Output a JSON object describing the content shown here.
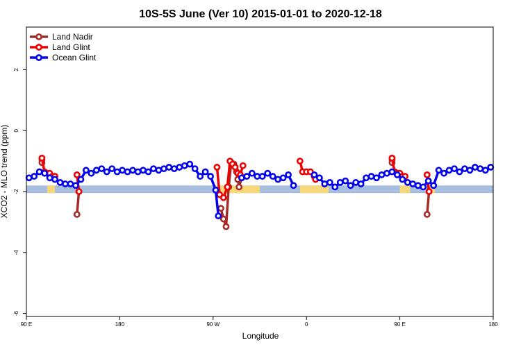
{
  "chart_data": {
    "type": "line",
    "title": "10S-5S June (Ver 10)   2015-01-01 to 2020-12-18",
    "xlabel": "Longitude",
    "ylabel": "XCO2 - MLO trend (ppm)",
    "xlim": [
      90,
      450
    ],
    "ylim": [
      -6.1,
      3.4
    ],
    "x_ticks": [
      {
        "value": 90,
        "label": "90 E"
      },
      {
        "value": 162,
        "label": "180"
      },
      {
        "value": 234,
        "label": "90 W"
      },
      {
        "value": 306,
        "label": "0"
      },
      {
        "value": 378,
        "label": "90 E"
      },
      {
        "value": 450,
        "label": "180"
      }
    ],
    "y_ticks": [
      {
        "value": 2,
        "label": "2"
      },
      {
        "value": 0,
        "label": "0"
      },
      {
        "value": -2,
        "label": "-2"
      },
      {
        "value": -4,
        "label": "-4"
      },
      {
        "value": -6,
        "label": "-6"
      }
    ],
    "grid": false,
    "legend_position": "top-left",
    "land_band": {
      "y_range": [
        -2.05,
        -1.8
      ],
      "ocean_color": "#a7bedf",
      "land_color": "#f6d87a",
      "land_segments": [
        [
          106,
          112
        ],
        [
          236,
          270
        ],
        [
          301,
          323
        ],
        [
          378,
          386
        ],
        [
          401,
          405
        ]
      ]
    },
    "series": [
      {
        "name": "Land Nadir",
        "color": "#a52a2a",
        "segments": [
          [
            [
              102,
              -0.95
            ],
            [
              102,
              -1.05
            ]
          ],
          [
            [
              129,
              -2.75
            ],
            [
              130.5,
              -2.0
            ]
          ],
          [
            [
              240,
              -2.55
            ],
            [
              242,
              -2.9
            ],
            [
              244,
              -3.15
            ],
            [
              246,
              -1.85
            ],
            [
              248,
              -1.05
            ],
            [
              250,
              -1.1
            ],
            [
              252,
              -1.35
            ],
            [
              253,
              -1.6
            ],
            [
              254,
              -1.85
            ],
            [
              256,
              -1.55
            ]
          ],
          [
            [
              372,
              -0.95
            ],
            [
              372,
              -1.05
            ]
          ],
          [
            [
              399,
              -2.75
            ],
            [
              400.5,
              -2.0
            ]
          ]
        ]
      },
      {
        "name": "Land Glint",
        "color": "#ee0000",
        "segments": [
          [
            [
              102,
              -0.9
            ],
            [
              104,
              -1.35
            ],
            [
              106,
              -1.4
            ],
            [
              108,
              -1.4
            ],
            [
              110,
              -1.5
            ],
            [
              112,
              -1.5
            ]
          ],
          [
            [
              129,
              -1.45
            ],
            [
              130.5,
              -2.0
            ]
          ],
          [
            [
              237,
              -1.2
            ],
            [
              239,
              -2.1
            ],
            [
              242,
              -2.2
            ],
            [
              245,
              -1.85
            ],
            [
              247,
              -1.0
            ],
            [
              249,
              -1.1
            ],
            [
              251,
              -1.2
            ],
            [
              253,
              -1.4
            ],
            [
              255,
              -1.45
            ],
            [
              257,
              -1.15
            ]
          ],
          [
            [
              301,
              -1.0
            ],
            [
              303,
              -1.35
            ],
            [
              306,
              -1.35
            ],
            [
              309,
              -1.35
            ],
            [
              312,
              -1.5
            ],
            [
              313,
              -1.6
            ]
          ],
          [
            [
              372,
              -0.9
            ],
            [
              374,
              -1.35
            ],
            [
              376,
              -1.4
            ],
            [
              378,
              -1.4
            ],
            [
              380,
              -1.5
            ],
            [
              382,
              -1.5
            ]
          ],
          [
            [
              399,
              -1.45
            ],
            [
              400.5,
              -2.0
            ]
          ]
        ]
      },
      {
        "name": "Ocean Glint",
        "color": "#0000ee",
        "segments": [
          [
            [
              92,
              -1.55
            ],
            [
              96,
              -1.5
            ],
            [
              100,
              -1.35
            ],
            [
              104,
              -1.4
            ],
            [
              108,
              -1.55
            ],
            [
              112,
              -1.6
            ],
            [
              116,
              -1.7
            ],
            [
              120,
              -1.75
            ],
            [
              124,
              -1.75
            ],
            [
              128,
              -1.8
            ],
            [
              132,
              -1.6
            ],
            [
              136,
              -1.3
            ],
            [
              140,
              -1.4
            ],
            [
              144,
              -1.3
            ],
            [
              148,
              -1.25
            ],
            [
              152,
              -1.35
            ],
            [
              156,
              -1.25
            ],
            [
              160,
              -1.35
            ],
            [
              164,
              -1.3
            ],
            [
              168,
              -1.35
            ],
            [
              172,
              -1.3
            ],
            [
              176,
              -1.35
            ],
            [
              180,
              -1.3
            ],
            [
              184,
              -1.35
            ],
            [
              188,
              -1.25
            ],
            [
              192,
              -1.3
            ],
            [
              196,
              -1.25
            ],
            [
              200,
              -1.2
            ],
            [
              204,
              -1.25
            ],
            [
              208,
              -1.2
            ],
            [
              212,
              -1.15
            ],
            [
              216,
              -1.1
            ],
            [
              220,
              -1.25
            ],
            [
              224,
              -1.5
            ],
            [
              228,
              -1.35
            ],
            [
              232,
              -1.5
            ],
            [
              236,
              -1.95
            ],
            [
              238,
              -2.8
            ]
          ],
          [
            [
              256,
              -1.55
            ],
            [
              260,
              -1.5
            ],
            [
              264,
              -1.4
            ],
            [
              268,
              -1.5
            ],
            [
              272,
              -1.5
            ],
            [
              276,
              -1.4
            ],
            [
              280,
              -1.5
            ],
            [
              284,
              -1.6
            ],
            [
              288,
              -1.55
            ],
            [
              292,
              -1.45
            ],
            [
              296,
              -1.8
            ]
          ],
          [
            [
              312,
              -1.45
            ],
            [
              316,
              -1.55
            ],
            [
              320,
              -1.75
            ],
            [
              324,
              -1.7
            ],
            [
              328,
              -1.85
            ],
            [
              332,
              -1.7
            ],
            [
              336,
              -1.65
            ],
            [
              340,
              -1.8
            ],
            [
              344,
              -1.7
            ],
            [
              348,
              -1.75
            ],
            [
              352,
              -1.55
            ],
            [
              356,
              -1.5
            ],
            [
              360,
              -1.55
            ],
            [
              364,
              -1.45
            ],
            [
              368,
              -1.4
            ],
            [
              372,
              -1.35
            ],
            [
              376,
              -1.45
            ],
            [
              380,
              -1.6
            ],
            [
              384,
              -1.7
            ],
            [
              388,
              -1.75
            ],
            [
              392,
              -1.8
            ],
            [
              396,
              -1.85
            ],
            [
              400,
              -1.65
            ],
            [
              404,
              -1.8
            ],
            [
              408,
              -1.3
            ],
            [
              412,
              -1.4
            ],
            [
              416,
              -1.3
            ],
            [
              420,
              -1.25
            ],
            [
              424,
              -1.35
            ],
            [
              428,
              -1.25
            ],
            [
              432,
              -1.3
            ],
            [
              436,
              -1.2
            ],
            [
              440,
              -1.25
            ],
            [
              444,
              -1.3
            ],
            [
              448,
              -1.2
            ]
          ]
        ]
      }
    ]
  }
}
